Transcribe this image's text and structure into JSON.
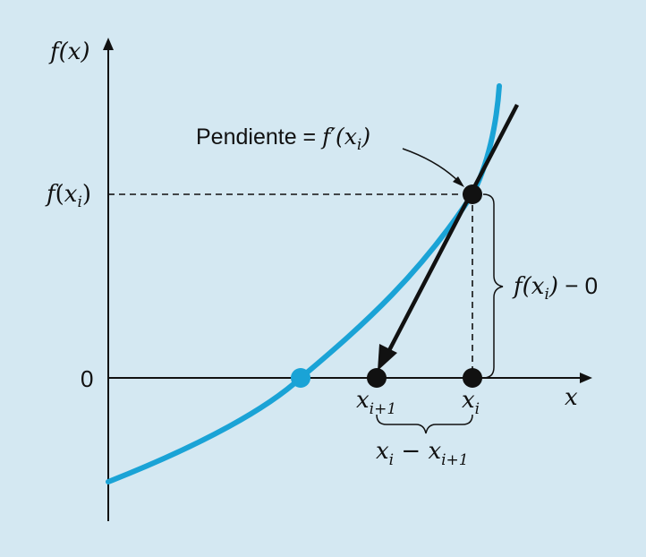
{
  "axes": {
    "y_label": "f(x)",
    "x_label": "x",
    "zero_label": "0",
    "fxi_label_f": "f",
    "fxi_label_open": "(",
    "fxi_label_x": "x",
    "fxi_label_i": "i",
    "fxi_label_close": ")"
  },
  "slope_label": {
    "prefix": "Pendiente = ",
    "f": "f",
    "prime": "′",
    "open": "(",
    "x": "x",
    "i": "i",
    "close": ")"
  },
  "points": {
    "xi1_x": "x",
    "xi1_sub": "i+1",
    "xi_x": "x",
    "xi_sub": "i"
  },
  "brace_right": {
    "f": "f",
    "open": "(",
    "x": "x",
    "i": "i",
    "close": ")",
    "minus_zero": " − 0"
  },
  "brace_bottom": {
    "x1": "x",
    "i1": "i",
    "minus": " − ",
    "x2": "x",
    "i2": "i+1"
  },
  "colors": {
    "background": "#d4e8f2",
    "curve": "#1aa3d6",
    "ink": "#111111"
  }
}
